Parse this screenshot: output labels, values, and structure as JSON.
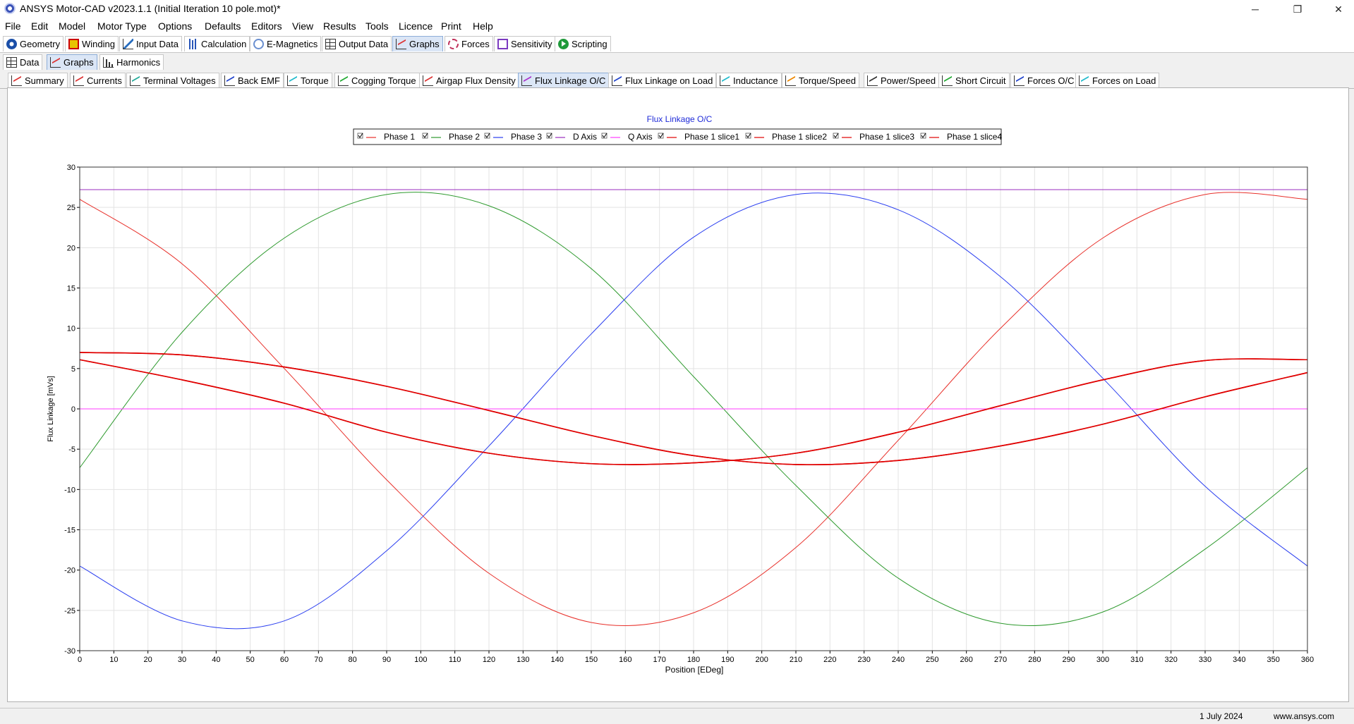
{
  "window": {
    "title": "ANSYS Motor-CAD v2023.1.1 (Initial Iteration 10 pole.mot)*",
    "controls": [
      "─",
      "❐",
      "✕"
    ]
  },
  "menu": [
    "File",
    "Edit",
    "Model",
    "Motor Type",
    "Options",
    "Defaults",
    "Editors",
    "View",
    "Results",
    "Tools",
    "Licence",
    "Print",
    "Help"
  ],
  "toolbar_tabs": [
    "Geometry",
    "Winding",
    "Input Data",
    "Calculation",
    "E-Magnetics",
    "Output Data",
    "Graphs",
    "Forces",
    "Sensitivity",
    "Scripting"
  ],
  "sub_tabs": [
    "Data",
    "Graphs",
    "Harmonics"
  ],
  "graph_tabs": [
    "Summary",
    "Currents",
    "Terminal Voltages",
    "Back EMF",
    "Torque",
    "Cogging Torque",
    "Airgap Flux Density",
    "Flux Linkage O/C",
    "Flux Linkage on Load",
    "Inductance",
    "Torque/Speed",
    "Power/Speed",
    "Short Circuit",
    "Forces O/C",
    "Forces on Load"
  ],
  "status": {
    "date": "1 July 2024",
    "url": "www.ansys.com"
  },
  "colors": {
    "phase": "#e8302a",
    "phase2": "#2e9a2e",
    "phase3": "#2a3ef0",
    "d_axis": "#9a2dbf",
    "q_axis": "#ff3cff",
    "slice": "#e00000"
  },
  "chart_data": {
    "type": "line",
    "title": "Flux Linkage O/C",
    "xlabel": "Position [EDeg]",
    "ylabel": "Flux Linkage [mVs]",
    "xlim": [
      0,
      360
    ],
    "ylim": [
      -30,
      30
    ],
    "xticks": [
      0,
      10,
      20,
      30,
      40,
      50,
      60,
      70,
      80,
      90,
      100,
      110,
      120,
      130,
      140,
      150,
      160,
      170,
      180,
      190,
      200,
      210,
      220,
      230,
      240,
      250,
      260,
      270,
      280,
      290,
      300,
      310,
      320,
      330,
      340,
      350,
      360
    ],
    "yticks": [
      30,
      25,
      20,
      15,
      10,
      5,
      0,
      -5,
      -10,
      -15,
      -20,
      -25,
      -30
    ],
    "grid": true,
    "legend_position": "top-center",
    "x": [
      0,
      30,
      60,
      90,
      120,
      150,
      180,
      210,
      240,
      270,
      300,
      330,
      360
    ],
    "series": [
      {
        "name": "Phase 1",
        "color": "#e8302a",
        "width": 1,
        "values": [
          26.0,
          18.0,
          5.0,
          -8.8,
          -20.4,
          -26.5,
          -25.3,
          -17.2,
          -3.9,
          10.0,
          21.2,
          26.6,
          26.0
        ]
      },
      {
        "name": "Phase 2",
        "color": "#2e9a2e",
        "width": 1,
        "values": [
          -7.3,
          9.5,
          21.2,
          26.6,
          25.2,
          17.4,
          4.0,
          -9.5,
          -21.0,
          -26.6,
          -25.2,
          -17.4,
          -7.3
        ]
      },
      {
        "name": "Phase 3",
        "color": "#2a3ef0",
        "width": 1,
        "values": [
          -19.5,
          -26.3,
          -26.3,
          -17.6,
          -4.6,
          9.3,
          21.3,
          26.6,
          24.7,
          16.4,
          3.8,
          -9.6,
          -19.5
        ]
      },
      {
        "name": "D Axis",
        "color": "#9a2dbf",
        "width": 1,
        "values": [
          27.2,
          27.2,
          27.2,
          27.2,
          27.2,
          27.2,
          27.2,
          27.2,
          27.2,
          27.2,
          27.2,
          27.2,
          27.2
        ]
      },
      {
        "name": "Q Axis",
        "color": "#ff3cff",
        "width": 1,
        "values": [
          0,
          0,
          0,
          0,
          0,
          0,
          0,
          0,
          0,
          0,
          0,
          0,
          0
        ]
      },
      {
        "name": "Phase 1 slice1",
        "color": "#e00000",
        "width": 1.6,
        "values": [
          7.0,
          6.7,
          5.2,
          2.8,
          -0.2,
          -3.3,
          -5.8,
          -6.9,
          -6.4,
          -4.6,
          -1.9,
          1.5,
          4.5
        ]
      },
      {
        "name": "Phase 1 slice2",
        "color": "#e00000",
        "width": 1.6,
        "values": [
          6.1,
          3.6,
          0.7,
          -2.9,
          -5.5,
          -6.8,
          -6.7,
          -5.5,
          -2.9,
          0.4,
          3.6,
          6.0,
          6.1
        ]
      },
      {
        "name": "Phase 1 slice3",
        "color": "#e00000",
        "width": 1.6,
        "values": [
          6.1,
          3.6,
          0.7,
          -2.9,
          -5.5,
          -6.8,
          -6.7,
          -5.5,
          -2.9,
          0.4,
          3.6,
          6.0,
          6.1
        ]
      },
      {
        "name": "Phase 1 slice4",
        "color": "#e00000",
        "width": 1.6,
        "values": [
          7.0,
          6.7,
          5.2,
          2.8,
          -0.2,
          -3.3,
          -5.8,
          -6.9,
          -6.4,
          -4.6,
          -1.9,
          1.5,
          4.5
        ]
      }
    ]
  }
}
